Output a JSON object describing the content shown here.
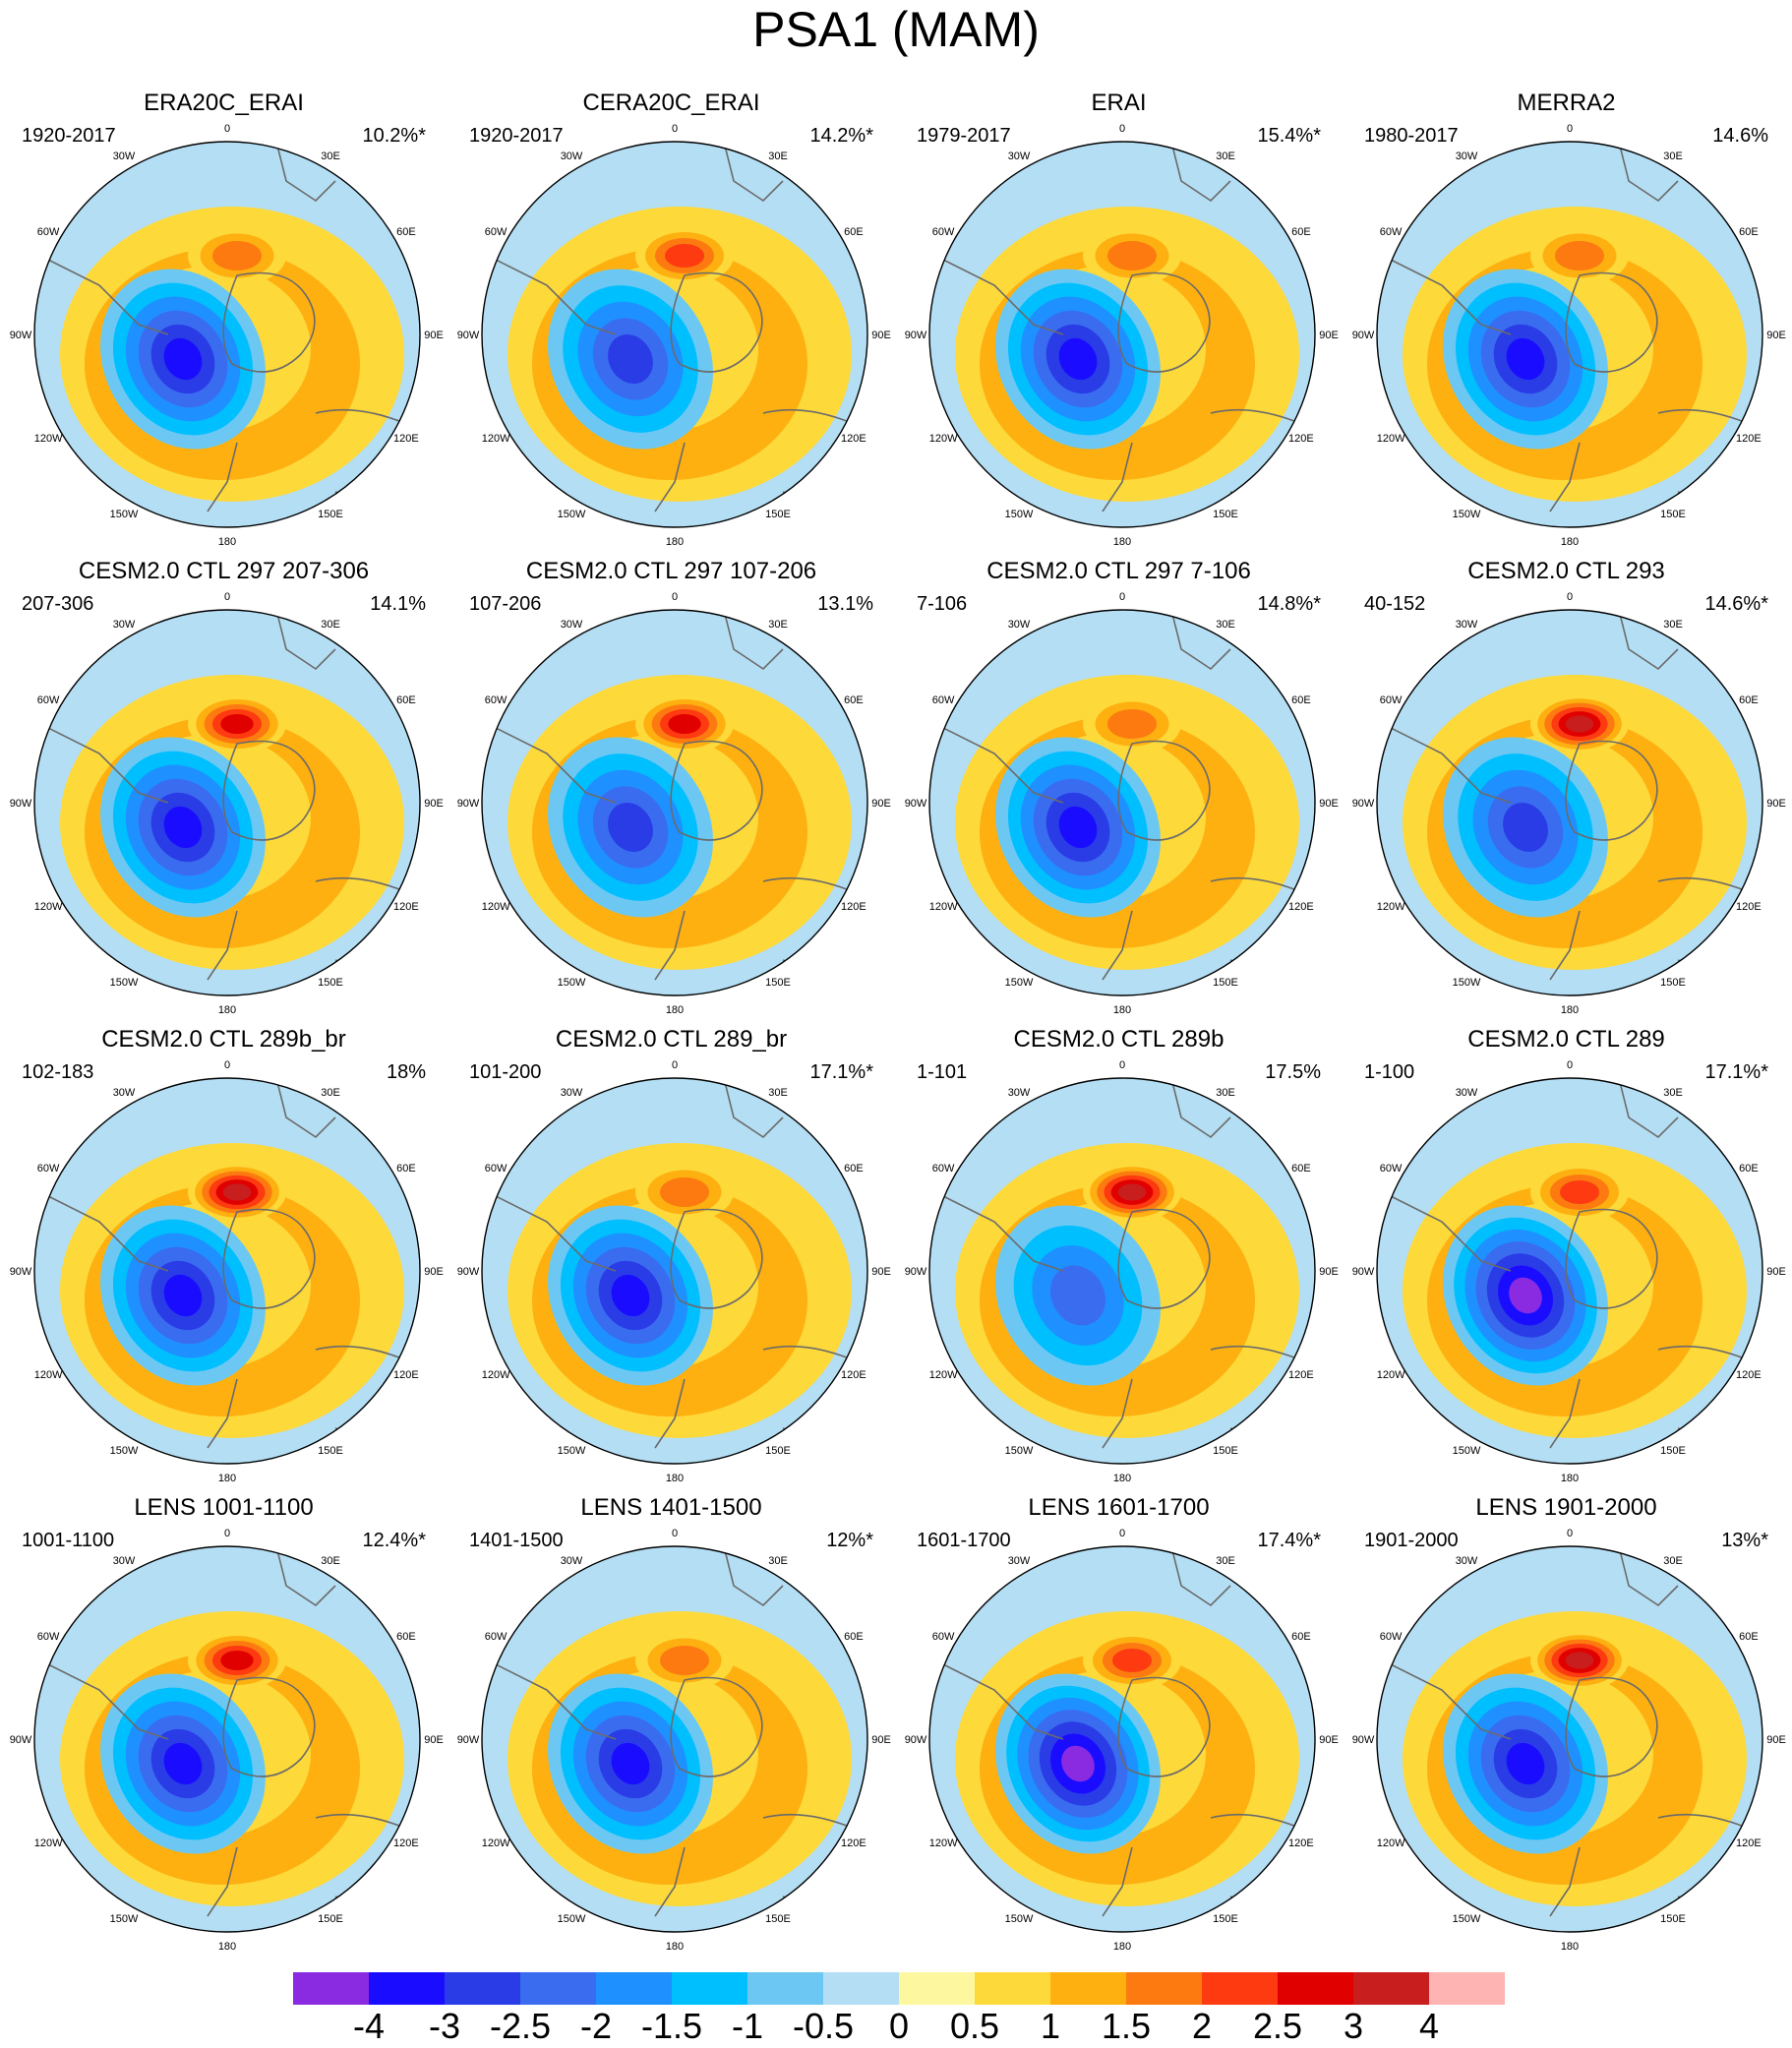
{
  "title": "PSA1 (MAM)",
  "lon_labels": [
    "0",
    "30E",
    "60E",
    "90E",
    "120E",
    "150E",
    "180",
    "150W",
    "120W",
    "90W",
    "60W",
    "30W"
  ],
  "panels": [
    {
      "title": "ERA20C_ERAI",
      "years": "1920-2017",
      "pct": "10.2%*",
      "dipole": {
        "neg": -3.5,
        "pos": 1.5
      }
    },
    {
      "title": "CERA20C_ERAI",
      "years": "1920-2017",
      "pct": "14.2%*",
      "dipole": {
        "neg": -2.5,
        "pos": 2
      }
    },
    {
      "title": "ERAI",
      "years": "1979-2017",
      "pct": "15.4%*",
      "dipole": {
        "neg": -3.5,
        "pos": 1.5
      }
    },
    {
      "title": "MERRA2",
      "years": "1980-2017",
      "pct": "14.6%",
      "dipole": {
        "neg": -3.5,
        "pos": 1.5
      }
    },
    {
      "title": "CESM2.0 CTL 297 207-306",
      "years": "207-306",
      "pct": "14.1%",
      "dipole": {
        "neg": -3,
        "pos": 2.5
      }
    },
    {
      "title": "CESM2.0 CTL 297 107-206",
      "years": "107-206",
      "pct": "13.1%",
      "dipole": {
        "neg": -2.5,
        "pos": 2.5
      }
    },
    {
      "title": "CESM2.0 CTL 297 7-106",
      "years": "7-106",
      "pct": "14.8%*",
      "dipole": {
        "neg": -3.5,
        "pos": 1.5
      }
    },
    {
      "title": "CESM2.0 CTL 293",
      "years": "40-152",
      "pct": "14.6%*",
      "dipole": {
        "neg": -2.5,
        "pos": 3
      }
    },
    {
      "title": "CESM2.0 CTL 289b_br",
      "years": "102-183",
      "pct": "18%",
      "dipole": {
        "neg": -3,
        "pos": 3
      }
    },
    {
      "title": "CESM2.0 CTL 289_br",
      "years": "101-200",
      "pct": "17.1%*",
      "dipole": {
        "neg": -3.5,
        "pos": 1.5
      }
    },
    {
      "title": "CESM2.0 CTL 289b",
      "years": "1-101",
      "pct": "17.5%",
      "dipole": {
        "neg": -2,
        "pos": 3
      }
    },
    {
      "title": "CESM2.0 CTL 289",
      "years": "1-100",
      "pct": "17.1%*",
      "dipole": {
        "neg": -4,
        "pos": 2
      }
    },
    {
      "title": "LENS 1001-1100",
      "years": "1001-1100",
      "pct": "12.4%*",
      "dipole": {
        "neg": -3,
        "pos": 2.5
      }
    },
    {
      "title": "LENS 1401-1500",
      "years": "1401-1500",
      "pct": "12%*",
      "dipole": {
        "neg": -3.5,
        "pos": 1.5
      }
    },
    {
      "title": "LENS 1601-1700",
      "years": "1601-1700",
      "pct": "17.4%*",
      "dipole": {
        "neg": -4,
        "pos": 2
      }
    },
    {
      "title": "LENS 1901-2000",
      "years": "1901-2000",
      "pct": "13%*",
      "dipole": {
        "neg": -3,
        "pos": 3
      }
    }
  ],
  "colorbar": {
    "levels": [
      "-4",
      "-3",
      "-2.5",
      "-2",
      "-1.5",
      "-1",
      "-0.5",
      "0",
      "0.5",
      "1",
      "1.5",
      "2",
      "2.5",
      "3",
      "4"
    ],
    "colors": [
      "#8a2be2",
      "#1a0dff",
      "#2a3ce6",
      "#3a6cf0",
      "#1e90ff",
      "#00bfff",
      "#6cc8f2",
      "#b4def4",
      "#fdf8a0",
      "#fdd93a",
      "#fdb010",
      "#fd7a10",
      "#fd3a10",
      "#e00000",
      "#c81e1e",
      "#ffb4b4"
    ]
  }
}
